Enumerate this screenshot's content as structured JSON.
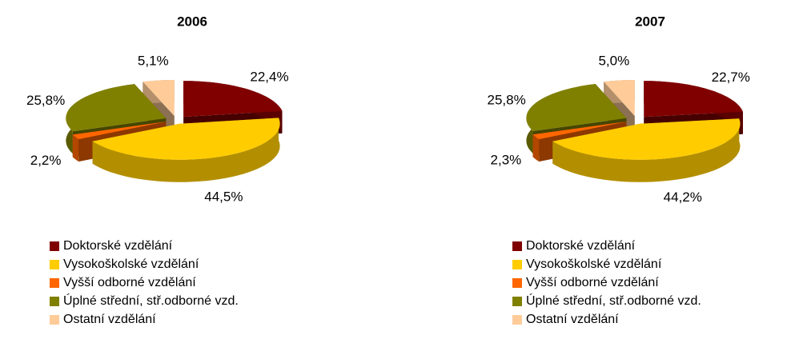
{
  "chart_data": [
    {
      "type": "pie",
      "title": "2006",
      "categories": [
        "Doktorské vzdělání",
        "Vysokoškolské vzdělání",
        "Vyšší odborné vzdělání",
        "Úplné střední, stř.odborné vzd.",
        "Ostatní vzdělání"
      ],
      "values": [
        22.4,
        44.5,
        2.2,
        25.8,
        5.1
      ],
      "value_labels": [
        "22,4%",
        "44,5%",
        "2,2%",
        "25,8%",
        "5,1%"
      ],
      "colors": [
        "#800000",
        "#FFCC00",
        "#FF6600",
        "#808000",
        "#FFCC99"
      ]
    },
    {
      "type": "pie",
      "title": "2007",
      "categories": [
        "Doktorské vzdělání",
        "Vysokoškolské vzdělání",
        "Vyšší odborné vzdělání",
        "Úplné střední, stř.odborné vzd.",
        "Ostatní vzdělání"
      ],
      "values": [
        22.7,
        44.2,
        2.3,
        25.8,
        5.0
      ],
      "value_labels": [
        "22,7%",
        "44,2%",
        "2,3%",
        "25,8%",
        "5,0%"
      ],
      "colors": [
        "#800000",
        "#FFCC00",
        "#FF6600",
        "#808000",
        "#FFCC99"
      ]
    }
  ]
}
